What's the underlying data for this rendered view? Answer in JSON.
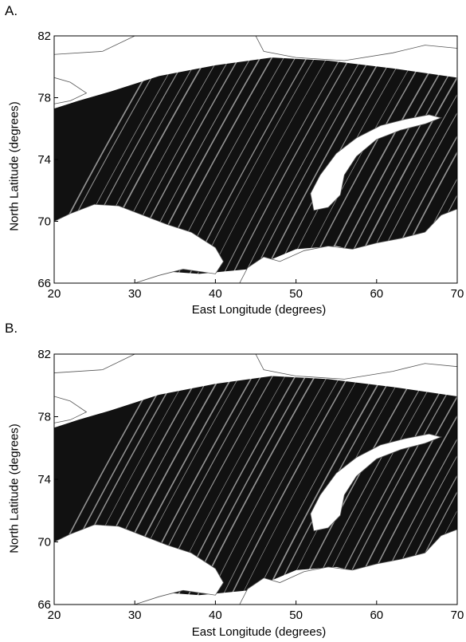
{
  "panels": [
    {
      "label": "A.",
      "xlabel": "East Longitude (degrees)",
      "ylabel": "North Latitude (degrees)",
      "xticks": [
        20,
        30,
        40,
        50,
        60,
        70
      ],
      "yticks": [
        66,
        70,
        74,
        78,
        82
      ],
      "xlim": [
        20,
        70
      ],
      "ylim": [
        66,
        82
      ]
    },
    {
      "label": "B.",
      "xlabel": "East Longitude (degrees)",
      "ylabel": "North Latitude (degrees)",
      "xticks": [
        20,
        30,
        40,
        50,
        60,
        70
      ],
      "yticks": [
        66,
        70,
        74,
        78,
        82
      ],
      "xlim": [
        20,
        70
      ],
      "ylim": [
        66,
        82
      ]
    }
  ],
  "colors": {
    "track": "#111111",
    "land": "#ffffff",
    "coast": "#555555"
  }
}
